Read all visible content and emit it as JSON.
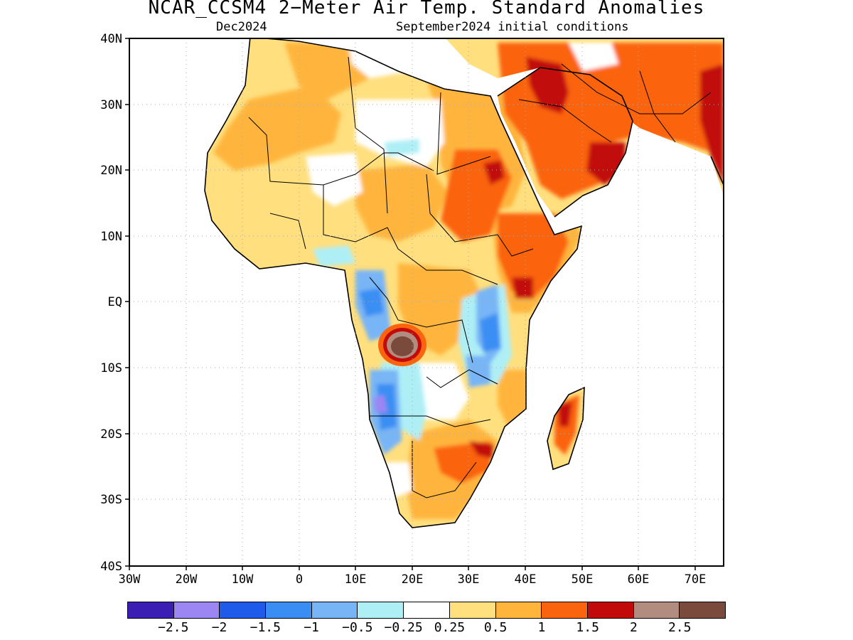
{
  "title": "NCAR_CCSM4 2−Meter Air Temp. Standard Anomalies",
  "subtitle_left": "Dec2024",
  "subtitle_right": "September2024 initial conditions",
  "lat_labels": [
    "40N",
    "30N",
    "20N",
    "10N",
    "EQ",
    "10S",
    "20S",
    "30S",
    "40S"
  ],
  "lon_labels": [
    "30W",
    "20W",
    "10W",
    "0",
    "10E",
    "20E",
    "30E",
    "40E",
    "50E",
    "60E",
    "70E"
  ],
  "colorbar": {
    "colors": [
      "#3b1fb4",
      "#9b86f3",
      "#1e5bea",
      "#3a8ef3",
      "#78b5f6",
      "#aeeff6",
      "#ffffff",
      "#ffdf7e",
      "#ffb53c",
      "#fb640e",
      "#c20a0a",
      "#b38c80",
      "#7a4a3c"
    ],
    "labels": [
      "−2.5",
      "−2",
      "−1.5",
      "−1",
      "−0.5",
      "−0.25",
      "0.25",
      "0.5",
      "1",
      "1.5",
      "2",
      "2.5"
    ]
  }
}
